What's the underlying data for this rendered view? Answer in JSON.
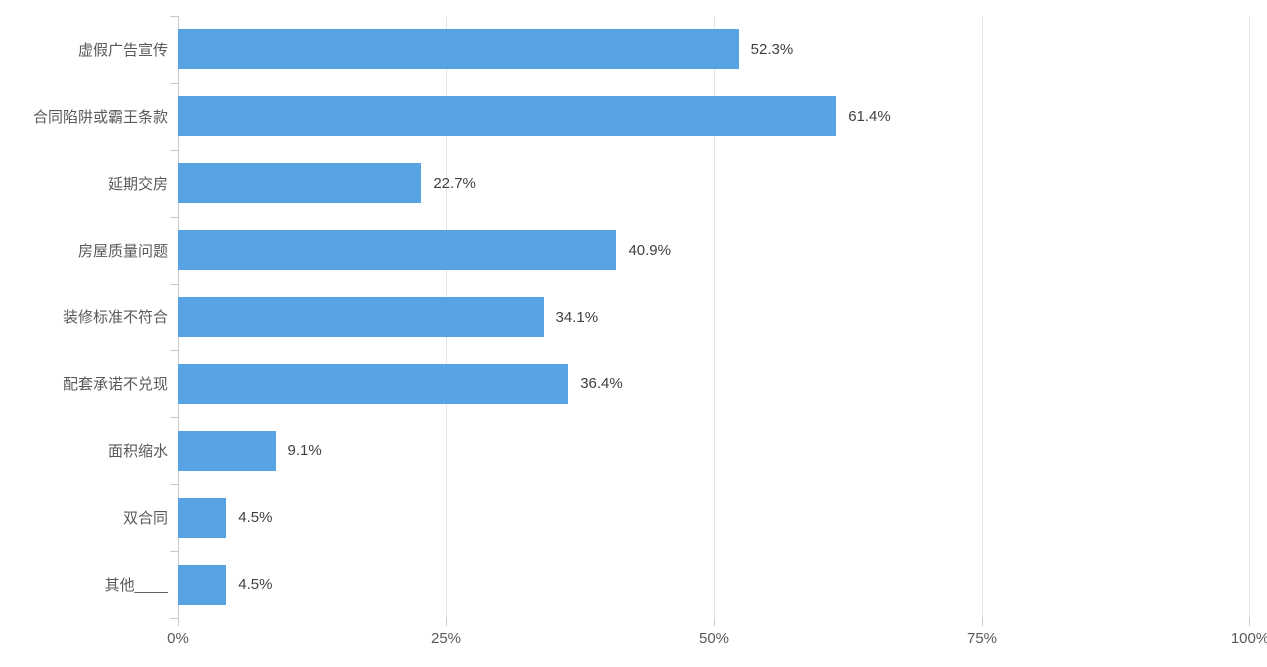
{
  "chart_data": {
    "type": "bar",
    "orientation": "horizontal",
    "title": "",
    "xlabel": "",
    "ylabel": "",
    "categories": [
      "虚假广告宣传",
      "合同陷阱或霸王条款",
      "延期交房",
      "房屋质量问题",
      "装修标准不符合",
      "配套承诺不兑现",
      "面积缩水",
      "双合同",
      "其他____"
    ],
    "values": [
      52.3,
      61.4,
      22.7,
      40.9,
      34.1,
      36.4,
      9.1,
      4.5,
      4.5
    ],
    "value_labels": [
      "52.3%",
      "61.4%",
      "22.7%",
      "40.9%",
      "34.1%",
      "36.4%",
      "9.1%",
      "4.5%",
      "4.5%"
    ],
    "x_tick_labels": [
      "0%",
      "25%",
      "50%",
      "75%",
      "100%"
    ],
    "x_tick_values": [
      0,
      25,
      50,
      75,
      100
    ],
    "xlim": [
      0,
      100
    ],
    "grid": true,
    "legend": false,
    "colors": {
      "bar": "#57a3e3",
      "gridline": "#e4e4e4",
      "axis": "#c9c9c9",
      "category_label": "#595959",
      "value_label": "#404040"
    }
  }
}
